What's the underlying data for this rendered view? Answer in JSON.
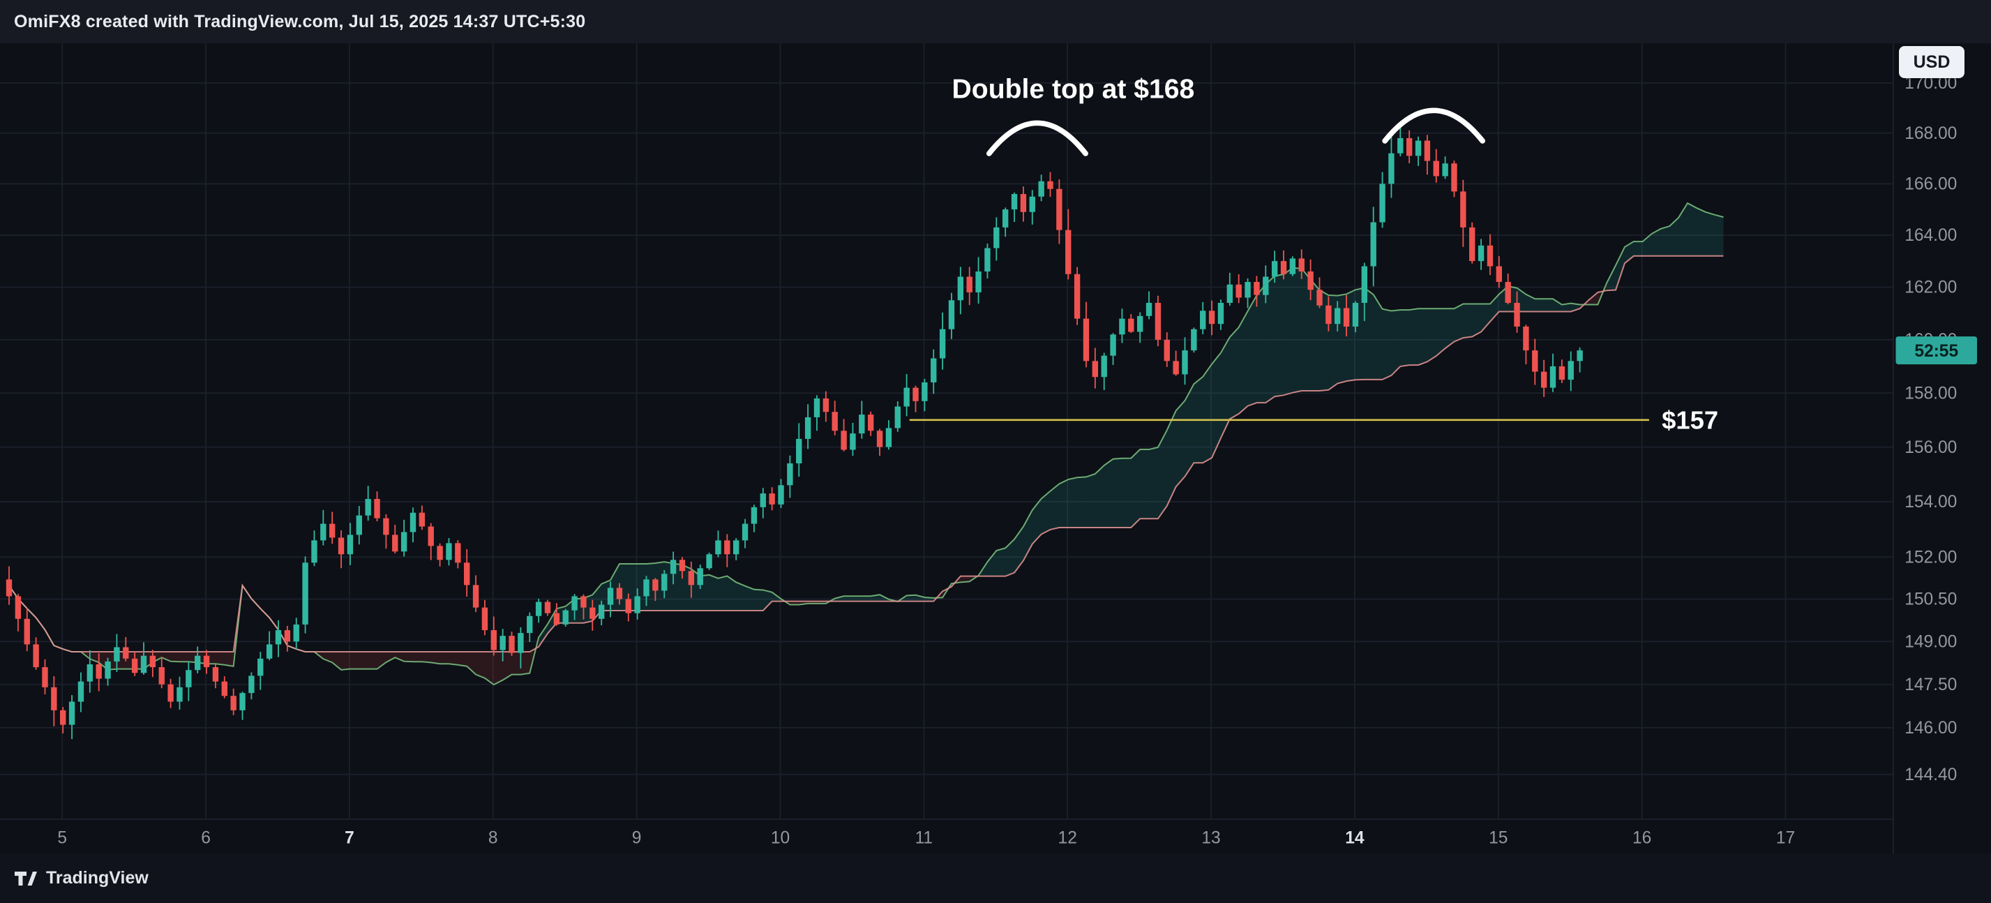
{
  "header": {
    "title": "OmiFX8 created with TradingView.com, Jul 15, 2025 14:37 UTC+5:30"
  },
  "currency_button": {
    "label": "USD"
  },
  "footer": {
    "brand": "TradingView"
  },
  "price_badge": {
    "text": "52:55",
    "price": 159.6,
    "bg_color": "#2da89c",
    "text_color": "#07211e"
  },
  "annotation": {
    "text": "Double top at $168",
    "day": 12.04,
    "price": 169.4
  },
  "arcs": [
    {
      "center_day": 11.79,
      "half_width_days": 0.336,
      "apex_price": 168.4
    },
    {
      "center_day": 14.55,
      "half_width_days": 0.34,
      "apex_price": 168.9
    }
  ],
  "hline": {
    "label": "$157",
    "value": 157,
    "start_day": 10.9,
    "end_day": 16.05,
    "color": "#d4c14f"
  },
  "axes": {
    "price_labels": [
      {
        "label": "170.00",
        "value": 170.0
      },
      {
        "label": "168.00",
        "value": 168.0
      },
      {
        "label": "166.00",
        "value": 166.0
      },
      {
        "label": "164.00",
        "value": 164.0
      },
      {
        "label": "162.00",
        "value": 162.0
      },
      {
        "label": "160.00",
        "value": 160.0
      },
      {
        "label": "158.00",
        "value": 158.0
      },
      {
        "label": "156.00",
        "value": 156.0
      },
      {
        "label": "154.00",
        "value": 154.0
      },
      {
        "label": "152.00",
        "value": 152.0
      },
      {
        "label": "150.50",
        "value": 150.5
      },
      {
        "label": "149.00",
        "value": 149.0
      },
      {
        "label": "147.50",
        "value": 147.5
      },
      {
        "label": "146.00",
        "value": 146.0
      },
      {
        "label": "144.40",
        "value": 144.4
      }
    ],
    "time_labels": [
      {
        "label": "5",
        "value": 5,
        "bold": false
      },
      {
        "label": "6",
        "value": 6,
        "bold": false
      },
      {
        "label": "7",
        "value": 7,
        "bold": true
      },
      {
        "label": "8",
        "value": 8,
        "bold": false
      },
      {
        "label": "9",
        "value": 9,
        "bold": false
      },
      {
        "label": "10",
        "value": 10,
        "bold": false
      },
      {
        "label": "11",
        "value": 11,
        "bold": false
      },
      {
        "label": "12",
        "value": 12,
        "bold": false
      },
      {
        "label": "13",
        "value": 13,
        "bold": false
      },
      {
        "label": "14",
        "value": 14,
        "bold": true
      },
      {
        "label": "15",
        "value": 15,
        "bold": false
      },
      {
        "label": "16",
        "value": 16,
        "bold": false
      },
      {
        "label": "17",
        "value": 17,
        "bold": false
      }
    ]
  },
  "chart_data": {
    "type": "candlestick",
    "overlay": "ichimoku-cloud",
    "title": "Double top at $168",
    "x_unit": "day of July 2025",
    "x_range": [
      4.6,
      17.2
    ],
    "price_scale": "log",
    "price_range": [
      143.1,
      171.6
    ],
    "start_day": 4.63,
    "step_days": 0.0625,
    "first_open": 151.2,
    "closes": [
      150.6,
      149.8,
      148.9,
      148.1,
      147.4,
      146.6,
      146.1,
      146.9,
      147.6,
      148.2,
      147.7,
      148.3,
      148.8,
      148.4,
      147.9,
      148.5,
      148.1,
      147.5,
      146.9,
      147.4,
      148.0,
      148.5,
      148.1,
      147.6,
      147.1,
      146.6,
      147.2,
      147.8,
      148.4,
      148.9,
      149.4,
      149.0,
      149.6,
      151.8,
      152.6,
      153.2,
      152.7,
      152.1,
      152.8,
      153.5,
      154.1,
      153.4,
      152.8,
      152.2,
      152.9,
      153.6,
      153.1,
      152.4,
      151.9,
      152.5,
      151.8,
      151.0,
      150.2,
      149.4,
      148.7,
      149.2,
      148.6,
      149.3,
      149.9,
      150.4,
      150.0,
      149.6,
      150.1,
      150.6,
      150.2,
      149.8,
      150.3,
      150.9,
      150.5,
      150.0,
      150.6,
      151.2,
      150.8,
      151.4,
      151.9,
      151.5,
      151.0,
      151.6,
      152.1,
      152.6,
      152.1,
      152.6,
      153.2,
      153.8,
      154.3,
      153.9,
      154.6,
      155.4,
      156.3,
      157.1,
      157.8,
      157.3,
      156.6,
      155.9,
      156.5,
      157.2,
      156.6,
      156.0,
      156.7,
      157.5,
      158.2,
      157.7,
      158.4,
      159.3,
      160.4,
      161.5,
      162.4,
      161.8,
      162.6,
      163.5,
      164.3,
      165.0,
      165.6,
      164.9,
      165.5,
      166.1,
      165.8,
      164.2,
      162.5,
      160.8,
      159.2,
      158.6,
      159.4,
      160.2,
      160.8,
      160.3,
      160.9,
      161.4,
      160.0,
      159.2,
      158.7,
      159.6,
      160.4,
      161.1,
      160.6,
      161.4,
      162.1,
      161.6,
      162.2,
      161.7,
      162.4,
      163.0,
      162.5,
      163.1,
      162.6,
      161.9,
      161.3,
      160.6,
      161.2,
      160.5,
      161.4,
      162.8,
      164.5,
      166.0,
      167.2,
      167.8,
      167.1,
      167.7,
      166.9,
      166.3,
      166.8,
      165.7,
      164.3,
      163.0,
      163.6,
      162.8,
      162.2,
      161.4,
      160.5,
      159.6,
      158.8,
      158.2,
      159.0,
      158.5,
      159.2,
      159.6
    ],
    "up_color": "#31b8a2",
    "down_color": "#ef5350",
    "ichimoku": {
      "conversion": 9,
      "base": 26,
      "lead_b": 52,
      "displacement": 26,
      "projection_bars": 16,
      "bull_fill": "rgba(38,166,154,0.16)",
      "bear_fill": "rgba(239,83,80,0.13)",
      "lead_a_color": "rgba(124,196,130,0.85)",
      "lead_b_color": "rgba(233,150,150,0.85)"
    }
  }
}
